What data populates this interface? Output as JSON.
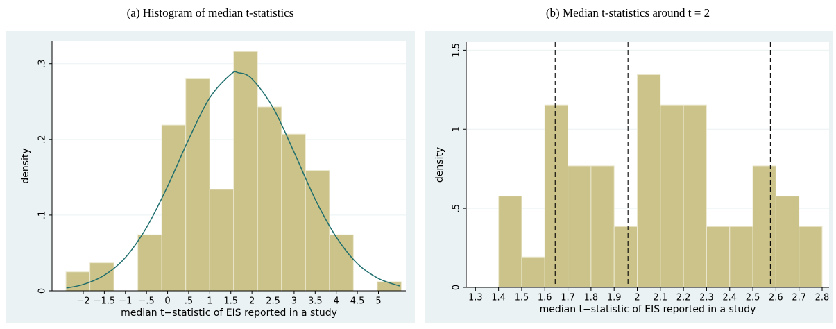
{
  "chart_data": [
    {
      "type": "histogram",
      "title": "(a) Histogram of median t-statistics",
      "xlabel": "median t−statistic of EIS reported in a study",
      "ylabel": "density",
      "bins": [
        -2.41,
        -1.842,
        -1.274,
        -0.706,
        -0.138,
        0.43,
        0.998,
        1.566,
        2.134,
        2.702,
        3.27,
        3.838,
        4.406,
        4.974,
        5.542
      ],
      "values": [
        0.025,
        0.037,
        0,
        0.074,
        0.219,
        0.28,
        0.134,
        0.316,
        0.243,
        0.207,
        0.159,
        0.074,
        0,
        0.012
      ],
      "color": "#cbc38a",
      "curve": {
        "x": [
          -2.4,
          -2,
          -1.5,
          -1,
          -0.5,
          0,
          0.5,
          1,
          1.5,
          1.68,
          2,
          2.5,
          3,
          3.5,
          4,
          4.5,
          5,
          5.5
        ],
        "values": [
          0.0038,
          0.0084,
          0.0206,
          0.044,
          0.0835,
          0.138,
          0.2,
          0.255,
          0.286,
          0.288,
          0.28,
          0.242,
          0.183,
          0.121,
          0.071,
          0.036,
          0.0163,
          0.0064
        ],
        "color": "#1f6e6e"
      },
      "xlim": [
        -2.74,
        5.65
      ],
      "xticks": [
        {
          "value": -2,
          "label": "−2"
        },
        {
          "value": -1.5,
          "label": "−1.5"
        },
        {
          "value": -1,
          "label": "−1"
        },
        {
          "value": -0.5,
          "label": "−.5"
        },
        0,
        {
          "value": 0.5,
          "label": ".5"
        },
        1,
        1.5,
        2,
        2.5,
        3,
        3.5,
        4,
        4.5,
        5
      ],
      "ylim": [
        0,
        0.33
      ],
      "yticks": [
        0,
        {
          "value": 0.1,
          "label": ".1"
        },
        {
          "value": 0.2,
          "label": ".2"
        },
        {
          "value": 0.3,
          "label": ".3"
        }
      ],
      "grid": true
    },
    {
      "type": "histogram",
      "title": "(b) Median t-statistics around t = 2",
      "xlabel": "median t−statistic of EIS reported in a study",
      "ylabel": "density",
      "bins": [
        1.4,
        1.5,
        1.6,
        1.7,
        1.8,
        1.9,
        2.0,
        2.1,
        2.2,
        2.3,
        2.4,
        2.5,
        2.6,
        2.7,
        2.8
      ],
      "values": [
        0.577,
        0.192,
        1.154,
        0.769,
        0.769,
        0.385,
        1.346,
        1.154,
        1.154,
        0.385,
        0.385,
        0.769,
        0.577,
        0.385
      ],
      "color": "#cbc38a",
      "vlines": [
        1.645,
        1.96,
        2.576
      ],
      "xlim": [
        1.26,
        2.83
      ],
      "xticks": [
        1.3,
        1.4,
        1.5,
        1.6,
        1.7,
        1.8,
        1.9,
        2,
        2.1,
        2.2,
        2.3,
        2.4,
        2.5,
        2.6,
        2.7,
        2.8
      ],
      "ylim": [
        0,
        1.55
      ],
      "yticks": [
        0,
        {
          "value": 0.5,
          "label": ".5"
        },
        1,
        1.5
      ],
      "grid": true
    }
  ]
}
